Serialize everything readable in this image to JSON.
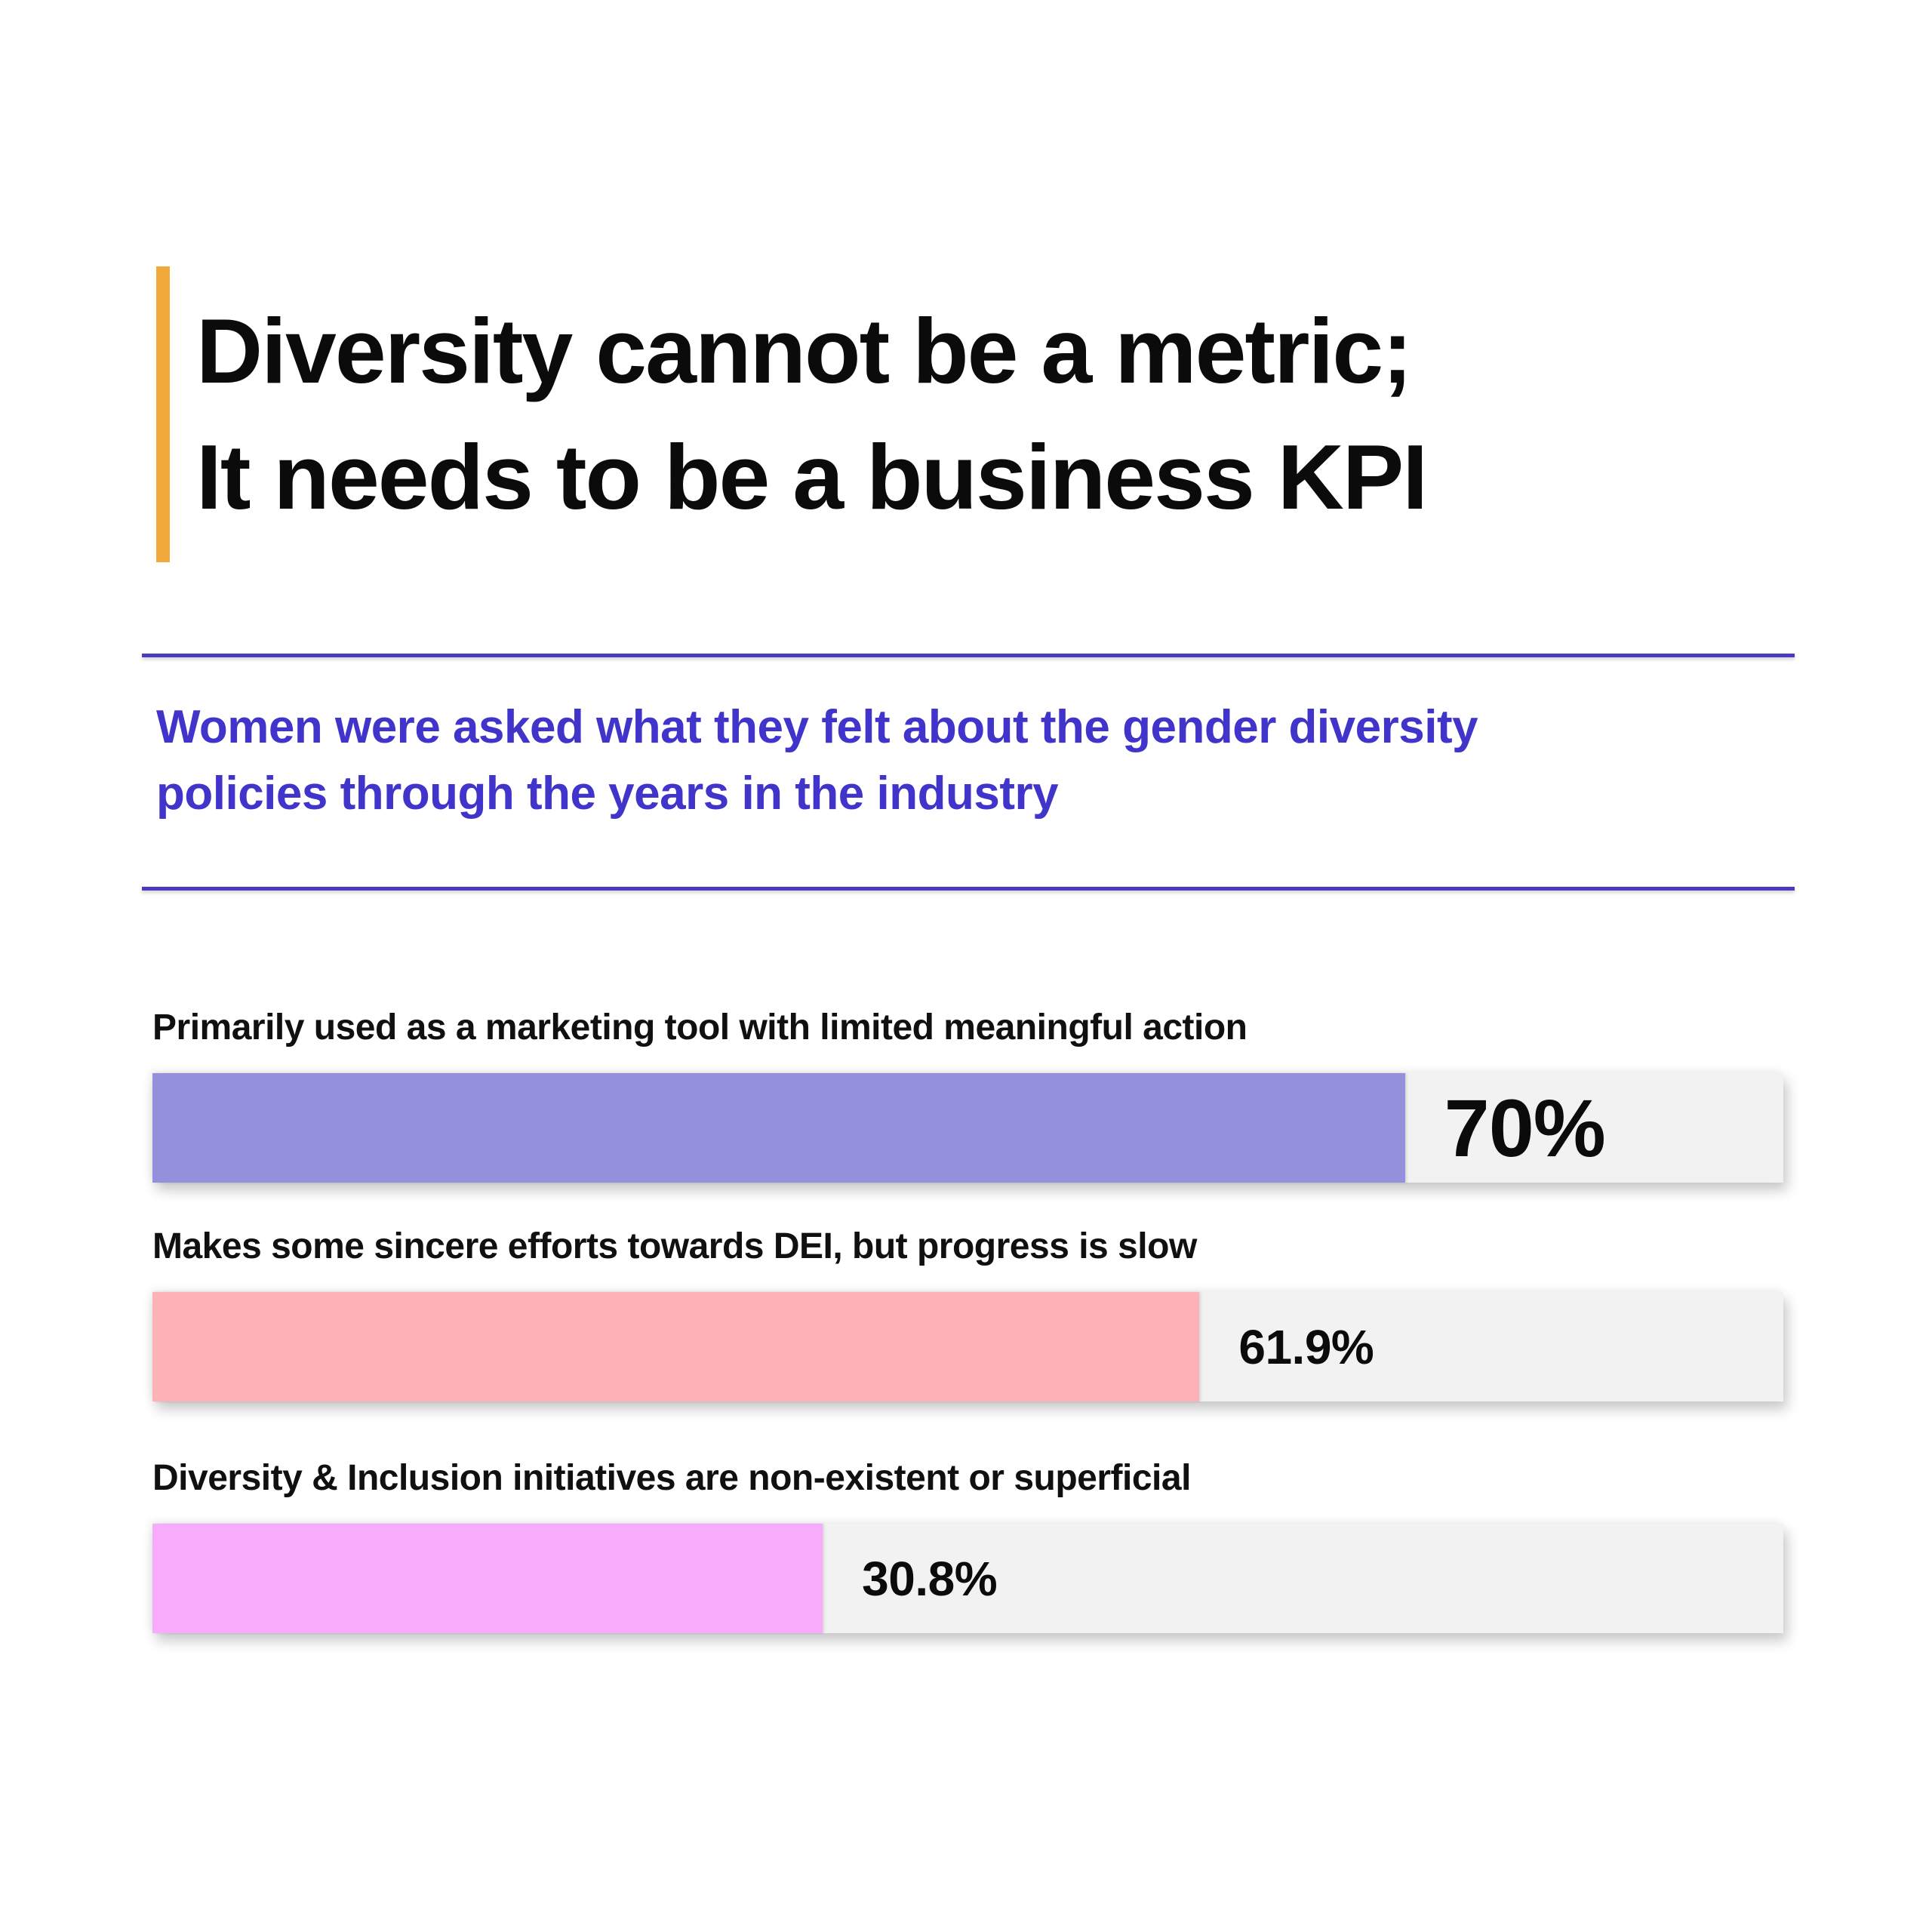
{
  "title": {
    "line1": "Diversity cannot be a metric;",
    "line2": "It needs to be a business KPI"
  },
  "subtitle": {
    "text": "Women were asked what they felt about the gender diversity policies through the years in the industry"
  },
  "colors": {
    "accent": "#F2A93C",
    "divider": "#4A3ABF",
    "subtitle_text": "#4134CA",
    "title_text": "#0B0B0B",
    "bar_track": "#F2F2F2"
  },
  "bars": [
    {
      "label": "Primarily used as a marketing tool with limited meaningful action",
      "value": 70,
      "value_label": "70%",
      "fill_percent_visual": 76.8,
      "color": "#9590DC"
    },
    {
      "label": "Makes some sincere efforts towards DEI, but progress is slow",
      "value": 61.9,
      "value_label": "61.9%",
      "fill_percent_visual": 64.2,
      "color": "#FDB2B7"
    },
    {
      "label": "Diversity & Inclusion initiatives are non-existent or superficial",
      "value": 30.8,
      "value_label": "30.8%",
      "fill_percent_visual": 41.1,
      "color": "#F7ABFB"
    }
  ],
  "chart_data": {
    "type": "bar",
    "orientation": "horizontal",
    "title": "Diversity cannot be a metric; It needs to be a business KPI",
    "subtitle": "Women were asked what they felt about the gender diversity policies through the years in the industry",
    "categories": [
      "Primarily used as a marketing tool with limited meaningful action",
      "Makes some sincere efforts towards DEI, but progress is slow",
      "Diversity & Inclusion initiatives are non-existent or superficial"
    ],
    "values": [
      70,
      61.9,
      30.8
    ],
    "value_labels": [
      "70%",
      "61.9%",
      "30.8%"
    ],
    "bar_colors": [
      "#9590DC",
      "#FDB2B7",
      "#F7ABFB"
    ],
    "xlabel": "",
    "ylabel": "",
    "xlim": [
      0,
      100
    ],
    "grid": false,
    "legend": false,
    "data_labels_position": "right-of-bar"
  }
}
